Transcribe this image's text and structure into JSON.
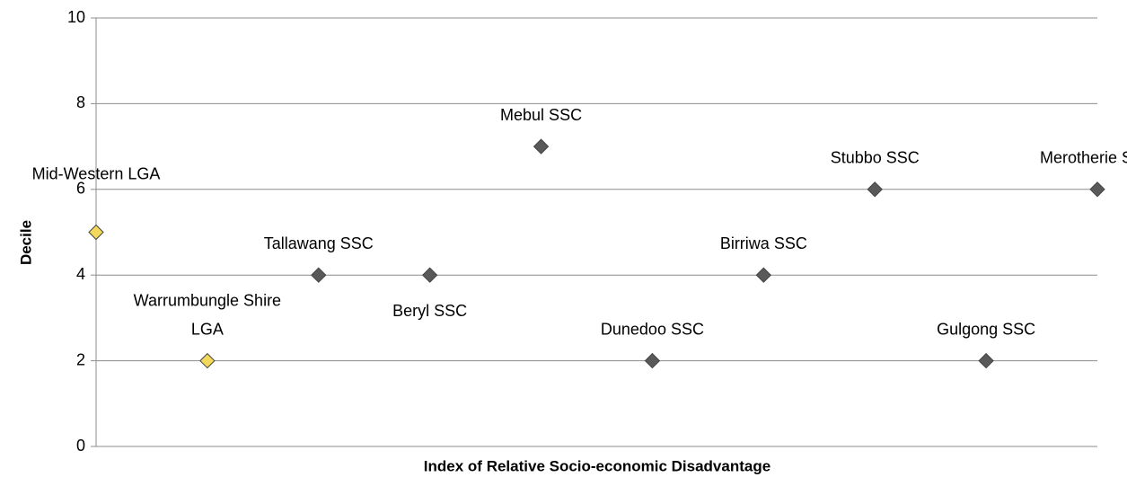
{
  "chart_data": {
    "type": "scatter",
    "categories": [
      "Mid-Western LGA",
      "Warrumbungle Shire LGA",
      "Tallawang SSC",
      "Beryl SSC",
      "Mebul SSC",
      "Dunedoo SSC",
      "Birriwa SSC",
      "Stubbo SSC",
      "Gulgong SSC",
      "Merotherie SSC"
    ],
    "values": [
      5,
      2,
      4,
      4,
      7,
      2,
      4,
      6,
      2,
      6
    ],
    "colors": [
      "#f2d95c",
      "#f2d95c",
      "#595959",
      "#595959",
      "#595959",
      "#595959",
      "#595959",
      "#595959",
      "#595959",
      "#595959"
    ],
    "ylim": [
      0,
      10
    ],
    "yticks": [
      0,
      2,
      4,
      6,
      8,
      10
    ],
    "grid": true,
    "y_label": "Decile",
    "x_label": "Index of Relative Socio-economic Disadvantage"
  }
}
